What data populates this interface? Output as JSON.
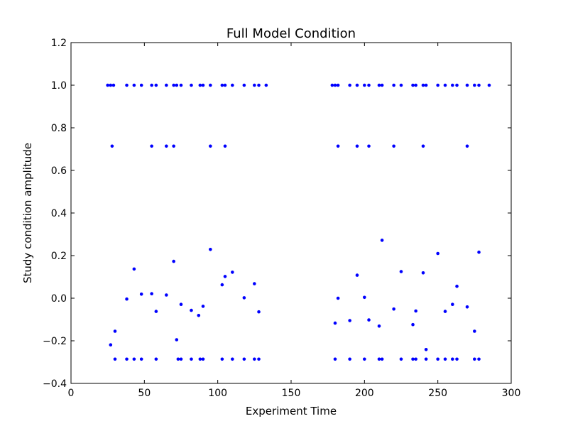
{
  "chart_data": {
    "type": "scatter",
    "title": "Full Model Condition",
    "xlabel": "Experiment Time",
    "ylabel": "Study condition amplitude",
    "xlim": [
      0,
      300
    ],
    "ylim": [
      -0.4,
      1.2
    ],
    "xticks": [
      0,
      50,
      100,
      150,
      200,
      250,
      300
    ],
    "yticks": [
      -0.4,
      -0.2,
      0.0,
      0.2,
      0.4,
      0.6,
      0.8,
      1.0,
      1.2
    ],
    "xtick_labels": [
      "0",
      "50",
      "100",
      "150",
      "200",
      "250",
      "300"
    ],
    "ytick_labels": [
      "−0.4",
      "−0.2",
      "0.0",
      "0.2",
      "0.4",
      "0.6",
      "0.8",
      "1.0",
      "1.2"
    ],
    "grid": false,
    "marker_color": "#0000ff",
    "series": [
      {
        "points": [
          [
            25,
            1.0
          ],
          [
            27,
            1.0
          ],
          [
            29,
            1.0
          ],
          [
            38,
            1.0
          ],
          [
            43,
            1.0
          ],
          [
            48,
            1.0
          ],
          [
            55,
            1.0
          ],
          [
            58,
            1.0
          ],
          [
            65,
            1.0
          ],
          [
            70,
            1.0
          ],
          [
            72,
            1.0
          ],
          [
            75,
            1.0
          ],
          [
            82,
            1.0
          ],
          [
            88,
            1.0
          ],
          [
            90,
            1.0
          ],
          [
            95,
            1.0
          ],
          [
            103,
            1.0
          ],
          [
            105,
            1.0
          ],
          [
            110,
            1.0
          ],
          [
            118,
            1.0
          ],
          [
            125,
            1.0
          ],
          [
            128,
            1.0
          ],
          [
            133,
            1.0
          ],
          [
            28,
            0.714
          ],
          [
            55,
            0.714
          ],
          [
            65,
            0.714
          ],
          [
            70,
            0.714
          ],
          [
            95,
            0.714
          ],
          [
            105,
            0.714
          ],
          [
            27,
            -0.219
          ],
          [
            30,
            -0.155
          ],
          [
            30,
            -0.286
          ],
          [
            38,
            -0.286
          ],
          [
            38,
            -0.004
          ],
          [
            43,
            0.137
          ],
          [
            43,
            -0.286
          ],
          [
            48,
            0.019
          ],
          [
            48,
            -0.286
          ],
          [
            55,
            0.021
          ],
          [
            58,
            -0.062
          ],
          [
            58,
            -0.286
          ],
          [
            65,
            0.015
          ],
          [
            70,
            0.173
          ],
          [
            72,
            -0.195
          ],
          [
            73,
            -0.286
          ],
          [
            75,
            -0.029
          ],
          [
            75,
            -0.286
          ],
          [
            82,
            -0.057
          ],
          [
            82,
            -0.286
          ],
          [
            87,
            -0.081
          ],
          [
            88,
            -0.286
          ],
          [
            90,
            -0.038
          ],
          [
            90,
            -0.286
          ],
          [
            95,
            0.229
          ],
          [
            103,
            0.063
          ],
          [
            103,
            -0.286
          ],
          [
            105,
            0.102
          ],
          [
            110,
            0.122
          ],
          [
            110,
            -0.286
          ],
          [
            118,
            0.002
          ],
          [
            118,
            -0.286
          ],
          [
            125,
            0.068
          ],
          [
            125,
            -0.286
          ],
          [
            128,
            -0.064
          ],
          [
            128,
            -0.286
          ],
          [
            178,
            1.0
          ],
          [
            180,
            1.0
          ],
          [
            182,
            1.0
          ],
          [
            190,
            1.0
          ],
          [
            195,
            1.0
          ],
          [
            200,
            1.0
          ],
          [
            203,
            1.0
          ],
          [
            210,
            1.0
          ],
          [
            212,
            1.0
          ],
          [
            220,
            1.0
          ],
          [
            225,
            1.0
          ],
          [
            233,
            1.0
          ],
          [
            235,
            1.0
          ],
          [
            240,
            1.0
          ],
          [
            242,
            1.0
          ],
          [
            250,
            1.0
          ],
          [
            255,
            1.0
          ],
          [
            260,
            1.0
          ],
          [
            263,
            1.0
          ],
          [
            270,
            1.0
          ],
          [
            275,
            1.0
          ],
          [
            278,
            1.0
          ],
          [
            285,
            1.0
          ],
          [
            182,
            0.714
          ],
          [
            195,
            0.714
          ],
          [
            203,
            0.714
          ],
          [
            220,
            0.714
          ],
          [
            240,
            0.714
          ],
          [
            270,
            0.714
          ],
          [
            180,
            -0.117
          ],
          [
            180,
            -0.286
          ],
          [
            182,
            0.0
          ],
          [
            190,
            -0.105
          ],
          [
            190,
            -0.286
          ],
          [
            195,
            0.108
          ],
          [
            200,
            0.004
          ],
          [
            200,
            -0.286
          ],
          [
            203,
            -0.102
          ],
          [
            210,
            -0.131
          ],
          [
            210,
            -0.286
          ],
          [
            212,
            0.272
          ],
          [
            212,
            -0.286
          ],
          [
            220,
            -0.051
          ],
          [
            225,
            0.125
          ],
          [
            225,
            -0.286
          ],
          [
            233,
            -0.124
          ],
          [
            233,
            -0.286
          ],
          [
            235,
            -0.06
          ],
          [
            235,
            -0.286
          ],
          [
            240,
            0.119
          ],
          [
            242,
            -0.241
          ],
          [
            242,
            -0.286
          ],
          [
            250,
            0.21
          ],
          [
            250,
            -0.286
          ],
          [
            255,
            -0.062
          ],
          [
            255,
            -0.286
          ],
          [
            260,
            -0.029
          ],
          [
            260,
            -0.286
          ],
          [
            263,
            0.056
          ],
          [
            263,
            -0.286
          ],
          [
            270,
            -0.041
          ],
          [
            275,
            -0.155
          ],
          [
            275,
            -0.286
          ],
          [
            278,
            0.216
          ],
          [
            278,
            -0.286
          ]
        ]
      }
    ]
  }
}
